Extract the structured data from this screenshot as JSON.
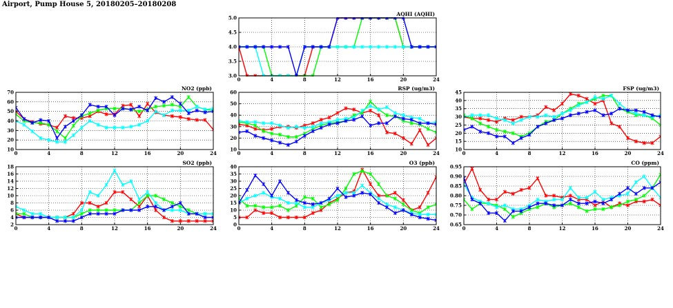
{
  "page_title": "Airport, Pump House 5, 20180205–20180208",
  "chart_data": [
    {
      "type": "line",
      "title": "AQHI (AQHI)",
      "x": [
        0,
        1,
        2,
        3,
        4,
        5,
        6,
        7,
        8,
        9,
        10,
        11,
        12,
        13,
        14,
        15,
        16,
        17,
        18,
        19,
        20,
        21,
        22,
        23,
        24
      ],
      "xticks": [
        0,
        4,
        8,
        12,
        16,
        20,
        24
      ],
      "ylim": [
        3.0,
        5.0
      ],
      "yticks": [
        "3.0",
        "3.5",
        "4.0",
        "4.5",
        "5.0"
      ],
      "grid": true,
      "series": [
        {
          "color": "#ff0000",
          "values": [
            4,
            3,
            3,
            3,
            3,
            3,
            3,
            3,
            3,
            4,
            4,
            4,
            5,
            5,
            5,
            5,
            5,
            5,
            5,
            5,
            4,
            4,
            4,
            4,
            4
          ]
        },
        {
          "color": "#00ff00",
          "values": [
            4,
            4,
            4,
            4,
            3,
            3,
            3,
            3,
            3,
            3,
            4,
            4,
            4,
            4,
            4,
            5,
            5,
            5,
            5,
            5,
            4,
            4,
            4,
            4,
            4
          ]
        },
        {
          "color": "#00ffff",
          "values": [
            4,
            4,
            4,
            3,
            3,
            3,
            3,
            3,
            4,
            4,
            4,
            4,
            4,
            4,
            4,
            4,
            4,
            4,
            4,
            4,
            4,
            4,
            4,
            4,
            4
          ]
        },
        {
          "color": "#0000ff",
          "values": [
            4,
            4,
            4,
            4,
            4,
            4,
            4,
            3,
            4,
            4,
            4,
            4,
            5,
            5,
            5,
            5,
            5,
            5,
            5,
            5,
            5,
            4,
            4,
            4,
            4
          ]
        }
      ]
    },
    {
      "type": "line",
      "title": "NO2 (ppb)",
      "x": [
        0,
        1,
        2,
        3,
        4,
        5,
        6,
        7,
        8,
        9,
        10,
        11,
        12,
        13,
        14,
        15,
        16,
        17,
        18,
        19,
        20,
        21,
        22,
        23,
        24
      ],
      "xticks": [
        0,
        4,
        8,
        12,
        16,
        20,
        24
      ],
      "ylim": [
        10,
        70
      ],
      "yticks": [
        "10",
        "20",
        "30",
        "40",
        "50",
        "60",
        "70"
      ],
      "grid": true,
      "series": [
        {
          "color": "#ff0000",
          "values": [
            50,
            42,
            39,
            37,
            36,
            33,
            45,
            43,
            43,
            45,
            50,
            47,
            47,
            56,
            57,
            45,
            58,
            49,
            46,
            45,
            44,
            42,
            41,
            41,
            31
          ]
        },
        {
          "color": "#00ff00",
          "values": [
            47,
            40,
            38,
            38,
            36,
            29,
            22,
            35,
            45,
            48,
            51,
            53,
            53,
            53,
            52,
            50,
            52,
            55,
            56,
            57,
            55,
            65,
            55,
            52,
            51
          ]
        },
        {
          "color": "#00ffff",
          "values": [
            40,
            36,
            29,
            22,
            20,
            18,
            18,
            25,
            33,
            40,
            36,
            33,
            33,
            33,
            34,
            36,
            40,
            50,
            46,
            51,
            51,
            51,
            55,
            52,
            53
          ]
        },
        {
          "color": "#0000ff",
          "values": [
            54,
            42,
            38,
            41,
            40,
            22,
            34,
            40,
            46,
            57,
            55,
            55,
            46,
            53,
            52,
            55,
            51,
            64,
            60,
            65,
            58,
            48,
            51,
            49,
            50
          ]
        }
      ]
    },
    {
      "type": "line",
      "title": "RSP (ug/m3)",
      "x": [
        0,
        1,
        2,
        3,
        4,
        5,
        6,
        7,
        8,
        9,
        10,
        11,
        12,
        13,
        14,
        15,
        16,
        17,
        18,
        19,
        20,
        21,
        22,
        23,
        24
      ],
      "xticks": [
        0,
        4,
        8,
        12,
        16,
        20,
        24
      ],
      "ylim": [
        10,
        60
      ],
      "yticks": [
        "10",
        "20",
        "30",
        "40",
        "50",
        "60"
      ],
      "grid": true,
      "series": [
        {
          "color": "#ff0000",
          "values": [
            32,
            31,
            28,
            27,
            28,
            30,
            30,
            29,
            31,
            33,
            36,
            38,
            42,
            46,
            45,
            42,
            44,
            40,
            25,
            24,
            20,
            15,
            27,
            14,
            20
          ]
        },
        {
          "color": "#00ff00",
          "values": [
            34,
            33,
            31,
            26,
            24,
            23,
            21,
            21,
            24,
            28,
            31,
            33,
            34,
            35,
            40,
            42,
            52,
            45,
            40,
            39,
            35,
            33,
            32,
            28,
            25
          ]
        },
        {
          "color": "#00ffff",
          "values": [
            35,
            34,
            34,
            33,
            33,
            31,
            29,
            30,
            29,
            30,
            33,
            34,
            36,
            37,
            38,
            44,
            48,
            45,
            47,
            42,
            40,
            38,
            37,
            33,
            34
          ]
        },
        {
          "color": "#0000ff",
          "values": [
            25,
            26,
            22,
            20,
            18,
            16,
            14,
            17,
            22,
            26,
            29,
            32,
            33,
            35,
            36,
            39,
            31,
            33,
            33,
            39,
            37,
            36,
            33,
            33,
            32
          ]
        }
      ]
    },
    {
      "type": "line",
      "title": "FSP (ug/m3)",
      "x": [
        0,
        1,
        2,
        3,
        4,
        5,
        6,
        7,
        8,
        9,
        10,
        11,
        12,
        13,
        14,
        15,
        16,
        17,
        18,
        19,
        20,
        21,
        22,
        23,
        24
      ],
      "xticks": [
        0,
        4,
        8,
        12,
        16,
        20,
        24
      ],
      "ylim": [
        10,
        45
      ],
      "yticks": [
        "10",
        "15",
        "20",
        "25",
        "30",
        "35",
        "40",
        "45"
      ],
      "grid": true,
      "series": [
        {
          "color": "#ff0000",
          "values": [
            30,
            29,
            29,
            28,
            27,
            29,
            28,
            30,
            30,
            31,
            36,
            34,
            38,
            44,
            43,
            41,
            38,
            40,
            26,
            24,
            17,
            15,
            14,
            14,
            18
          ]
        },
        {
          "color": "#00ff00",
          "values": [
            31,
            29,
            26,
            24,
            22,
            21,
            20,
            18,
            20,
            24,
            27,
            28,
            32,
            35,
            38,
            39,
            41,
            43,
            43,
            35,
            33,
            31,
            31,
            29,
            25
          ]
        },
        {
          "color": "#00ffff",
          "values": [
            30,
            31,
            31,
            31,
            29,
            28,
            26,
            28,
            30,
            30,
            31,
            30,
            32,
            34,
            37,
            39,
            42,
            41,
            43,
            38,
            34,
            32,
            31,
            30,
            31
          ]
        },
        {
          "color": "#0000ff",
          "values": [
            22,
            24,
            21,
            20,
            18,
            18,
            14,
            17,
            19,
            24,
            26,
            28,
            29,
            31,
            32,
            33,
            34,
            31,
            32,
            35,
            34,
            34,
            33,
            31,
            30
          ]
        }
      ]
    },
    {
      "type": "line",
      "title": "SO2 (ppb)",
      "x": [
        0,
        1,
        2,
        3,
        4,
        5,
        6,
        7,
        8,
        9,
        10,
        11,
        12,
        13,
        14,
        15,
        16,
        17,
        18,
        19,
        20,
        21,
        22,
        23,
        24
      ],
      "xticks": [
        0,
        4,
        8,
        12,
        16,
        20,
        24
      ],
      "ylim": [
        2,
        18
      ],
      "yticks": [
        "2",
        "4",
        "6",
        "8",
        "10",
        "12",
        "14",
        "16",
        "18"
      ],
      "grid": true,
      "series": [
        {
          "color": "#ff0000",
          "values": [
            5,
            4,
            4,
            4,
            4,
            4,
            4,
            5,
            8,
            8,
            7,
            8,
            11,
            11,
            9,
            7,
            10,
            6,
            4,
            3,
            3,
            3,
            3,
            3,
            3
          ]
        },
        {
          "color": "#00ff00",
          "values": [
            5,
            5,
            4,
            4,
            4,
            4,
            4,
            4,
            5,
            6,
            6,
            6,
            6,
            6,
            6,
            8,
            10,
            10,
            9,
            8,
            7,
            6,
            5,
            5,
            5
          ]
        },
        {
          "color": "#00ffff",
          "values": [
            7,
            6,
            5,
            5,
            4,
            4,
            4,
            4,
            6,
            11,
            10,
            13,
            17,
            13,
            14,
            9,
            11,
            8,
            6,
            6,
            6,
            5,
            5,
            5,
            5
          ]
        },
        {
          "color": "#0000ff",
          "values": [
            4,
            4,
            4,
            4,
            4,
            3,
            3,
            3,
            4,
            5,
            5,
            5,
            5,
            6,
            6,
            6,
            7,
            7,
            6,
            7,
            8,
            5,
            5,
            4,
            4
          ]
        }
      ]
    },
    {
      "type": "line",
      "title": "O3 (ppb)",
      "x": [
        0,
        1,
        2,
        3,
        4,
        5,
        6,
        7,
        8,
        9,
        10,
        11,
        12,
        13,
        14,
        15,
        16,
        17,
        18,
        19,
        20,
        21,
        22,
        23,
        24
      ],
      "xticks": [
        0,
        4,
        8,
        12,
        16,
        20,
        24
      ],
      "ylim": [
        0,
        40
      ],
      "yticks": [
        "0",
        "5",
        "10",
        "15",
        "20",
        "25",
        "30",
        "35",
        "40"
      ],
      "grid": true,
      "series": [
        {
          "color": "#ff0000",
          "values": [
            5,
            5,
            10,
            8,
            8,
            5,
            5,
            5,
            5,
            8,
            10,
            15,
            18,
            22,
            23,
            38,
            28,
            20,
            20,
            22,
            17,
            10,
            12,
            22,
            33
          ]
        },
        {
          "color": "#00ff00",
          "values": [
            18,
            13,
            13,
            12,
            12,
            13,
            10,
            13,
            19,
            18,
            12,
            14,
            17,
            25,
            35,
            37,
            35,
            28,
            20,
            18,
            14,
            10,
            8,
            12,
            14
          ]
        },
        {
          "color": "#00ffff",
          "values": [
            15,
            18,
            20,
            22,
            19,
            18,
            15,
            15,
            12,
            12,
            15,
            17,
            20,
            22,
            22,
            27,
            22,
            18,
            14,
            12,
            10,
            8,
            7,
            7,
            7
          ]
        },
        {
          "color": "#0000ff",
          "values": [
            15,
            24,
            34,
            28,
            20,
            30,
            22,
            17,
            15,
            14,
            15,
            18,
            25,
            19,
            20,
            22,
            21,
            15,
            12,
            8,
            10,
            7,
            5,
            4,
            3
          ]
        }
      ]
    },
    {
      "type": "line",
      "title": "CO (ppm)",
      "x": [
        0,
        1,
        2,
        3,
        4,
        5,
        6,
        7,
        8,
        9,
        10,
        11,
        12,
        13,
        14,
        15,
        16,
        17,
        18,
        19,
        20,
        21,
        22,
        23,
        24
      ],
      "xticks": [
        0,
        4,
        8,
        12,
        16,
        20,
        24
      ],
      "ylim": [
        0.65,
        0.95
      ],
      "yticks": [
        "0.65",
        "0.70",
        "0.75",
        "0.80",
        "0.85",
        "0.90",
        "0.95"
      ],
      "grid": true,
      "series": [
        {
          "color": "#ff0000",
          "values": [
            0.86,
            0.94,
            0.83,
            0.78,
            0.78,
            0.82,
            0.81,
            0.83,
            0.84,
            0.89,
            0.8,
            0.8,
            0.79,
            0.8,
            0.78,
            0.78,
            0.75,
            0.77,
            0.74,
            0.76,
            0.75,
            0.77,
            0.77,
            0.78,
            0.75
          ]
        },
        {
          "color": "#00ff00",
          "values": [
            0.78,
            0.73,
            0.76,
            0.76,
            0.75,
            0.73,
            0.69,
            0.71,
            0.73,
            0.74,
            0.76,
            0.74,
            0.75,
            0.76,
            0.74,
            0.72,
            0.73,
            0.73,
            0.74,
            0.75,
            0.77,
            0.78,
            0.8,
            0.84,
            0.91
          ]
        },
        {
          "color": "#00ffff",
          "values": [
            0.86,
            0.79,
            0.77,
            0.76,
            0.74,
            0.75,
            0.73,
            0.73,
            0.75,
            0.78,
            0.77,
            0.78,
            0.78,
            0.84,
            0.79,
            0.79,
            0.82,
            0.78,
            0.79,
            0.8,
            0.81,
            0.87,
            0.9,
            0.84,
            0.79
          ]
        },
        {
          "color": "#0000ff",
          "values": [
            0.89,
            0.78,
            0.76,
            0.71,
            0.71,
            0.67,
            0.72,
            0.72,
            0.74,
            0.76,
            0.76,
            0.75,
            0.75,
            0.78,
            0.76,
            0.76,
            0.77,
            0.76,
            0.78,
            0.81,
            0.84,
            0.81,
            0.84,
            0.84,
            0.87
          ]
        }
      ]
    }
  ]
}
